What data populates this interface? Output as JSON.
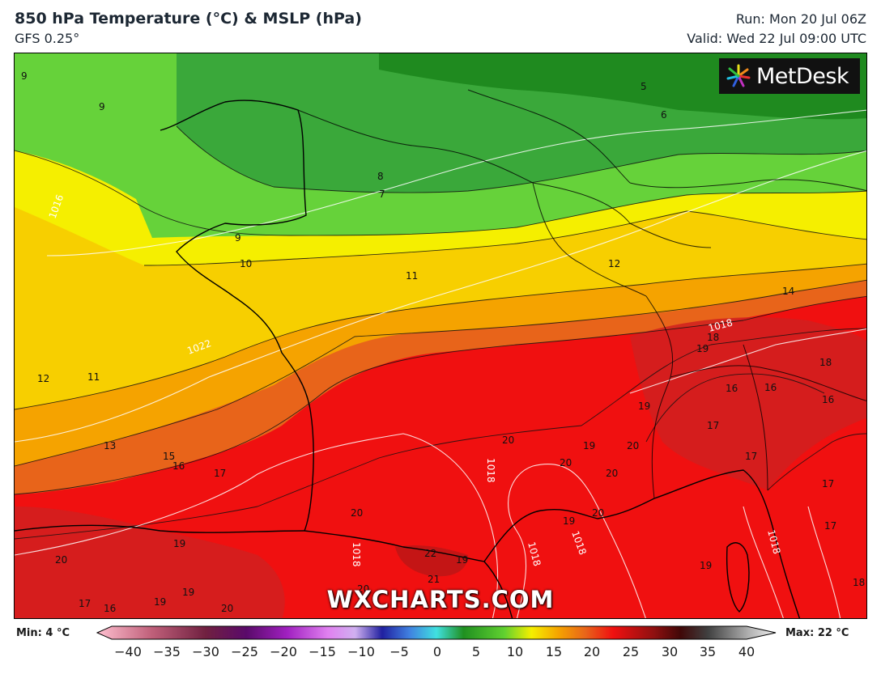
{
  "header": {
    "title": "850 hPa Temperature (°C) & MSLP (hPa)",
    "model": "GFS 0.25°",
    "run": "Run: Mon 20 Jul 06Z",
    "valid": "Valid: Wed 22 Jul 09:00 UTC"
  },
  "brand": {
    "logo_text": "MetDesk",
    "watermark": "WXCHARTS.COM"
  },
  "legend": {
    "min_label": "Min: 4 °C",
    "max_label": "Max: 22 °C",
    "ticks": [
      "−40",
      "−35",
      "−30",
      "−25",
      "−20",
      "−15",
      "−10",
      "−5",
      "0",
      "5",
      "10",
      "15",
      "20",
      "25",
      "30",
      "35",
      "40"
    ]
  },
  "contour_labels": {
    "temperature": [
      "9",
      "9",
      "8",
      "7",
      "8",
      "6",
      "5",
      "5",
      "9",
      "10",
      "11",
      "12",
      "12",
      "11",
      "13",
      "15",
      "16",
      "17",
      "14",
      "18",
      "19",
      "18",
      "16",
      "16",
      "16",
      "17",
      "17",
      "17",
      "20",
      "20",
      "19",
      "20",
      "20",
      "19",
      "20",
      "20",
      "19",
      "19",
      "20",
      "22",
      "21",
      "19",
      "19",
      "18",
      "17",
      "20",
      "19",
      "16",
      "19",
      "17",
      "20"
    ],
    "pressure": [
      "1016",
      "1022",
      "1018",
      "1018",
      "1018",
      "1018",
      "1018",
      "1018"
    ]
  },
  "colors": {
    "green_dark": "#1f8a1f",
    "green": "#3aa83a",
    "green_light": "#66d23a",
    "yellow": "#f5ef00",
    "yellow_orange": "#f7cf00",
    "orange": "#f5a300",
    "orange_red": "#e8641a",
    "red": "#f01010",
    "red_dark": "#d02020"
  }
}
